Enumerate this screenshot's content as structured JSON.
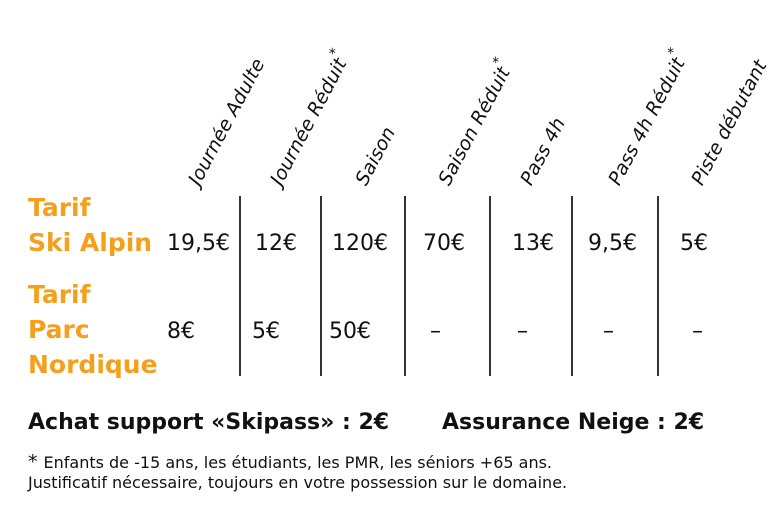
{
  "columns": [
    {
      "label": "Journée Adulte",
      "star": ""
    },
    {
      "label": "Journée Réduit",
      "star": "*"
    },
    {
      "label": "Saison",
      "star": ""
    },
    {
      "label": "Saison Réduit",
      "star": "*"
    },
    {
      "label": "Pass 4h",
      "star": ""
    },
    {
      "label": "Pass 4h Réduit",
      "star": "*"
    },
    {
      "label": "Piste débutant",
      "star": ""
    }
  ],
  "rows": [
    {
      "label_lines": [
        "Tarif",
        "Ski Alpin"
      ],
      "values": [
        "19,5€",
        "12€",
        "120€",
        "70€",
        "13€",
        "9,5€",
        "5€"
      ]
    },
    {
      "label_lines": [
        "Tarif",
        "Parc",
        "Nordique"
      ],
      "values": [
        "8€",
        "5€",
        "50€",
        "–",
        "–",
        "–",
        "–"
      ]
    }
  ],
  "footer": {
    "skipass": "Achat support «Skipass» : 2€",
    "assurance": "Assurance Neige : 2€"
  },
  "note": {
    "star": "*",
    "line1": "Enfants de -15 ans, les étudiants, les PMR, les séniors +65 ans.",
    "line2": "Justificatif nécessaire, toujours en votre possession sur le domaine."
  },
  "colors": {
    "accent": "#f5a01c",
    "text": "#111111"
  }
}
